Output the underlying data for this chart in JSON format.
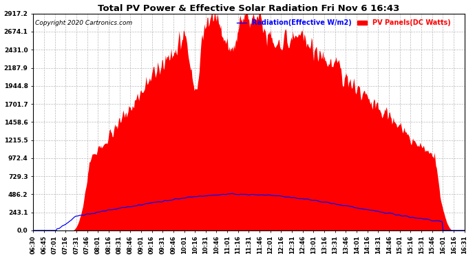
{
  "title": "Total PV Power & Effective Solar Radiation Fri Nov 6 16:43",
  "copyright": "Copyright 2020 Cartronics.com",
  "legend_radiation": "Radiation(Effective W/m2)",
  "legend_pv": "PV Panels(DC Watts)",
  "yticks": [
    0.0,
    243.1,
    486.2,
    729.3,
    972.4,
    1215.5,
    1458.6,
    1701.7,
    1944.8,
    2187.9,
    2431.0,
    2674.1,
    2917.2
  ],
  "ymax": 2917.2,
  "ymin": 0.0,
  "background_color": "#ffffff",
  "plot_bg_color": "#ffffff",
  "grid_color": "#b0b0b0",
  "pv_fill_color": "#ff0000",
  "radiation_line_color": "#0000ff",
  "title_color": "#000000",
  "copyright_color": "#000000",
  "xtick_labels": [
    "06:30",
    "06:45",
    "07:01",
    "07:16",
    "07:31",
    "07:46",
    "08:01",
    "08:16",
    "08:31",
    "08:46",
    "09:01",
    "09:16",
    "09:31",
    "09:46",
    "10:01",
    "10:16",
    "10:31",
    "10:46",
    "11:01",
    "11:16",
    "11:31",
    "11:46",
    "12:01",
    "12:16",
    "12:31",
    "12:46",
    "13:01",
    "13:16",
    "13:31",
    "13:46",
    "14:01",
    "14:16",
    "14:31",
    "14:46",
    "15:01",
    "15:16",
    "15:31",
    "15:46",
    "16:01",
    "16:16",
    "16:31"
  ],
  "figsize": [
    6.9,
    3.75
  ],
  "dpi": 100
}
